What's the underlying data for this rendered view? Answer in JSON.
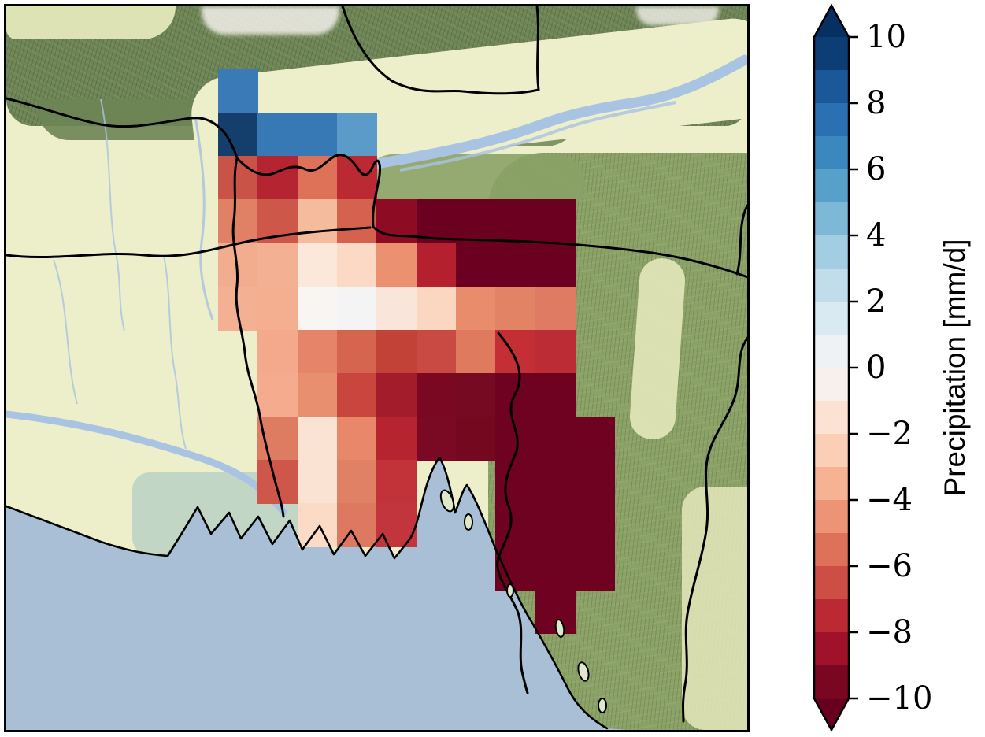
{
  "figure": {
    "background": "#ffffff"
  },
  "map": {
    "frame_color": "#000000",
    "palette": {
      "plain": "#ecefc9",
      "mountains": "#6d8454",
      "hills": "#8ba266",
      "valley": "#e4e8bb",
      "sea": "#a8bfd5",
      "river": "#a9c3e2",
      "snow": "#f3f1ea",
      "sundarbans": "#bcd3c4",
      "island": "#dfe8c8",
      "line": "#000000"
    }
  },
  "colorbar": {
    "title": "Precipitation [mm/d]",
    "over_color": "#053061",
    "under_color": "#67001f",
    "segments_top_to_bottom": [
      "#0c3d74",
      "#1a5899",
      "#2a70b2",
      "#3a88bd",
      "#57a0ca",
      "#7eb8d7",
      "#a2cde2",
      "#c1ddec",
      "#daeaf2",
      "#eef2f5",
      "#f8f0ea",
      "#fce2d3",
      "#fbcfb6",
      "#f6b393",
      "#ec9475",
      "#de715a",
      "#cd4e44",
      "#bb2a33",
      "#9f1229",
      "#7a0722"
    ],
    "ticks": [
      {
        "value": 10,
        "label": "10"
      },
      {
        "value": 8,
        "label": "8"
      },
      {
        "value": 6,
        "label": "6"
      },
      {
        "value": 4,
        "label": "4"
      },
      {
        "value": 2,
        "label": "2"
      },
      {
        "value": 0,
        "label": "0"
      },
      {
        "value": -2,
        "label": "−2"
      },
      {
        "value": -4,
        "label": "−4"
      },
      {
        "value": -6,
        "label": "−6"
      },
      {
        "value": -8,
        "label": "−8"
      },
      {
        "value": -10,
        "label": "−10"
      }
    ]
  },
  "chart_data": {
    "type": "heatmap",
    "title": "",
    "colorbar_label": "Precipitation [mm/d]",
    "units": "mm/d",
    "value_range": [
      -10,
      10
    ],
    "bin_size": 1,
    "colormap": "RdBu diverging, discrete 1 mm/d bins, colorbar extended with arrows at both ends",
    "region": "Bangladesh / Ganges-Brahmaputra delta and Bay of Bengal on shaded-relief basemap",
    "grid": {
      "n_rows": 13,
      "n_cols": 10
    },
    "cells": [
      {
        "row": 0,
        "col": 0,
        "value": 6.5,
        "color": "#3a7ab6"
      },
      {
        "row": 1,
        "col": 0,
        "value": 9.5,
        "color": "#143e6b"
      },
      {
        "row": 1,
        "col": 1,
        "value": 6.5,
        "color": "#3679b5"
      },
      {
        "row": 1,
        "col": 2,
        "value": 6.5,
        "color": "#3679b5"
      },
      {
        "row": 1,
        "col": 3,
        "value": 5.5,
        "color": "#5b9bc9"
      },
      {
        "row": 2,
        "col": 0,
        "value": -6.5,
        "color": "#ca5348"
      },
      {
        "row": 2,
        "col": 1,
        "value": -7.5,
        "color": "#b52431"
      },
      {
        "row": 2,
        "col": 2,
        "value": -5.5,
        "color": "#dd7258"
      },
      {
        "row": 2,
        "col": 3,
        "value": -7.5,
        "color": "#bb2a33"
      },
      {
        "row": 3,
        "col": 0,
        "value": -4.5,
        "color": "#e08165"
      },
      {
        "row": 3,
        "col": 1,
        "value": -6.5,
        "color": "#cd584a"
      },
      {
        "row": 3,
        "col": 2,
        "value": -3.5,
        "color": "#f5bb9d"
      },
      {
        "row": 3,
        "col": 3,
        "value": -5.5,
        "color": "#d4624e"
      },
      {
        "row": 3,
        "col": 4,
        "value": -8.5,
        "color": "#8e0c23"
      },
      {
        "row": 3,
        "col": 5,
        "value": -10,
        "color": "#6b0020"
      },
      {
        "row": 3,
        "col": 6,
        "value": -10,
        "color": "#6b0020"
      },
      {
        "row": 3,
        "col": 7,
        "value": -10,
        "color": "#6b0020"
      },
      {
        "row": 3,
        "col": 8,
        "value": -10,
        "color": "#6b0020"
      },
      {
        "row": 4,
        "col": 0,
        "value": -3.5,
        "color": "#f2ad8e"
      },
      {
        "row": 4,
        "col": 1,
        "value": -3.5,
        "color": "#f3b092"
      },
      {
        "row": 4,
        "col": 2,
        "value": -1.5,
        "color": "#fbe8da"
      },
      {
        "row": 4,
        "col": 3,
        "value": -2.5,
        "color": "#fbd9c5"
      },
      {
        "row": 4,
        "col": 4,
        "value": -4.5,
        "color": "#ec9170"
      },
      {
        "row": 4,
        "col": 5,
        "value": -7.5,
        "color": "#b5202f"
      },
      {
        "row": 4,
        "col": 6,
        "value": -10,
        "color": "#6b0020"
      },
      {
        "row": 4,
        "col": 7,
        "value": -10,
        "color": "#6b0020"
      },
      {
        "row": 4,
        "col": 8,
        "value": -10,
        "color": "#6b0020"
      },
      {
        "row": 5,
        "col": 0,
        "value": -3.5,
        "color": "#f4b093"
      },
      {
        "row": 5,
        "col": 1,
        "value": -3.5,
        "color": "#f4ae90"
      },
      {
        "row": 5,
        "col": 2,
        "value": -0.5,
        "color": "#f8f5f3"
      },
      {
        "row": 5,
        "col": 3,
        "value": 0.5,
        "color": "#f5f4f4"
      },
      {
        "row": 5,
        "col": 4,
        "value": -1.5,
        "color": "#f9e5d9"
      },
      {
        "row": 5,
        "col": 5,
        "value": -2.5,
        "color": "#fbd7c1"
      },
      {
        "row": 5,
        "col": 6,
        "value": -4.5,
        "color": "#e88c6b"
      },
      {
        "row": 5,
        "col": 7,
        "value": -4.5,
        "color": "#e28366"
      },
      {
        "row": 5,
        "col": 8,
        "value": -5.5,
        "color": "#de7b62"
      },
      {
        "row": 6,
        "col": 1,
        "value": -3.5,
        "color": "#f5a98c"
      },
      {
        "row": 6,
        "col": 2,
        "value": -4.5,
        "color": "#e58468"
      },
      {
        "row": 6,
        "col": 3,
        "value": -5.5,
        "color": "#d5654f"
      },
      {
        "row": 6,
        "col": 4,
        "value": -6.5,
        "color": "#c24238"
      },
      {
        "row": 6,
        "col": 5,
        "value": -6.5,
        "color": "#c84a42"
      },
      {
        "row": 6,
        "col": 6,
        "value": -5.5,
        "color": "#df7a5e"
      },
      {
        "row": 6,
        "col": 7,
        "value": -6.5,
        "color": "#c42f36"
      },
      {
        "row": 6,
        "col": 8,
        "value": -7.5,
        "color": "#bc2c34"
      },
      {
        "row": 7,
        "col": 1,
        "value": -3.5,
        "color": "#f5ab8e"
      },
      {
        "row": 7,
        "col": 2,
        "value": -4.5,
        "color": "#e88f70"
      },
      {
        "row": 7,
        "col": 3,
        "value": -6.5,
        "color": "#c8463e"
      },
      {
        "row": 7,
        "col": 4,
        "value": -8.5,
        "color": "#a31c2b"
      },
      {
        "row": 7,
        "col": 5,
        "value": -9.5,
        "color": "#7a0823"
      },
      {
        "row": 7,
        "col": 6,
        "value": -9.5,
        "color": "#750a22"
      },
      {
        "row": 7,
        "col": 7,
        "value": -10,
        "color": "#6e0220"
      },
      {
        "row": 7,
        "col": 8,
        "value": -10,
        "color": "#6e0220"
      },
      {
        "row": 8,
        "col": 1,
        "value": -5.5,
        "color": "#de7c62"
      },
      {
        "row": 8,
        "col": 2,
        "value": -1.5,
        "color": "#fae3d2"
      },
      {
        "row": 8,
        "col": 3,
        "value": -4.5,
        "color": "#e8876a"
      },
      {
        "row": 8,
        "col": 4,
        "value": -7.5,
        "color": "#b5242f"
      },
      {
        "row": 8,
        "col": 5,
        "value": -9.5,
        "color": "#7a0a23"
      },
      {
        "row": 8,
        "col": 6,
        "value": -9.5,
        "color": "#73081f"
      },
      {
        "row": 8,
        "col": 7,
        "value": -10,
        "color": "#6e0220"
      },
      {
        "row": 8,
        "col": 8,
        "value": -10,
        "color": "#6e0220"
      },
      {
        "row": 8,
        "col": 9,
        "value": -10,
        "color": "#6e0220"
      },
      {
        "row": 9,
        "col": 1,
        "value": -6.5,
        "color": "#cf574a"
      },
      {
        "row": 9,
        "col": 2,
        "value": -1.5,
        "color": "#fae3d2"
      },
      {
        "row": 9,
        "col": 3,
        "value": -4.5,
        "color": "#e08165"
      },
      {
        "row": 9,
        "col": 4,
        "value": -7.5,
        "color": "#c13239"
      },
      {
        "row": 9,
        "col": 7,
        "value": -10,
        "color": "#6e0220"
      },
      {
        "row": 9,
        "col": 8,
        "value": -10,
        "color": "#6e0220"
      },
      {
        "row": 9,
        "col": 9,
        "value": -10,
        "color": "#6e0220"
      },
      {
        "row": 10,
        "col": 2,
        "value": -2.5,
        "color": "#fcdbc6"
      },
      {
        "row": 10,
        "col": 3,
        "value": -5.5,
        "color": "#dd7961"
      },
      {
        "row": 10,
        "col": 4,
        "value": -7.5,
        "color": "#c3353c"
      },
      {
        "row": 10,
        "col": 7,
        "value": -10,
        "color": "#6e0220"
      },
      {
        "row": 10,
        "col": 8,
        "value": -10,
        "color": "#6e0220"
      },
      {
        "row": 10,
        "col": 9,
        "value": -10,
        "color": "#6e0220"
      },
      {
        "row": 11,
        "col": 7,
        "value": -10,
        "color": "#6e0220"
      },
      {
        "row": 11,
        "col": 8,
        "value": -10,
        "color": "#6e0220"
      },
      {
        "row": 11,
        "col": 9,
        "value": -10,
        "color": "#6e0220"
      },
      {
        "row": 12,
        "col": 8,
        "value": -10,
        "color": "#6e0220"
      }
    ]
  }
}
